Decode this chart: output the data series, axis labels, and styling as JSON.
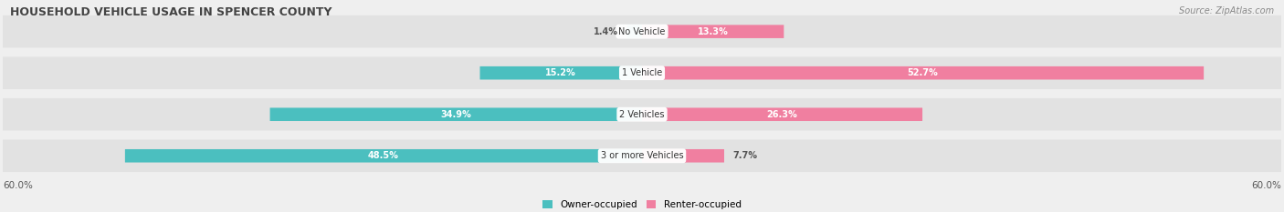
{
  "title": "HOUSEHOLD VEHICLE USAGE IN SPENCER COUNTY",
  "source": "Source: ZipAtlas.com",
  "categories": [
    "No Vehicle",
    "1 Vehicle",
    "2 Vehicles",
    "3 or more Vehicles"
  ],
  "owner_values": [
    1.4,
    15.2,
    34.9,
    48.5
  ],
  "renter_values": [
    13.3,
    52.7,
    26.3,
    7.7
  ],
  "owner_color": "#4bbfbf",
  "renter_color": "#f07fa0",
  "axis_max": 60.0,
  "axis_label": "60.0%",
  "bg_color": "#efefef",
  "bar_bg_color": "#e2e2e2",
  "title_color": "#444444",
  "source_color": "#888888",
  "owner_threshold": 5,
  "renter_threshold": 10
}
